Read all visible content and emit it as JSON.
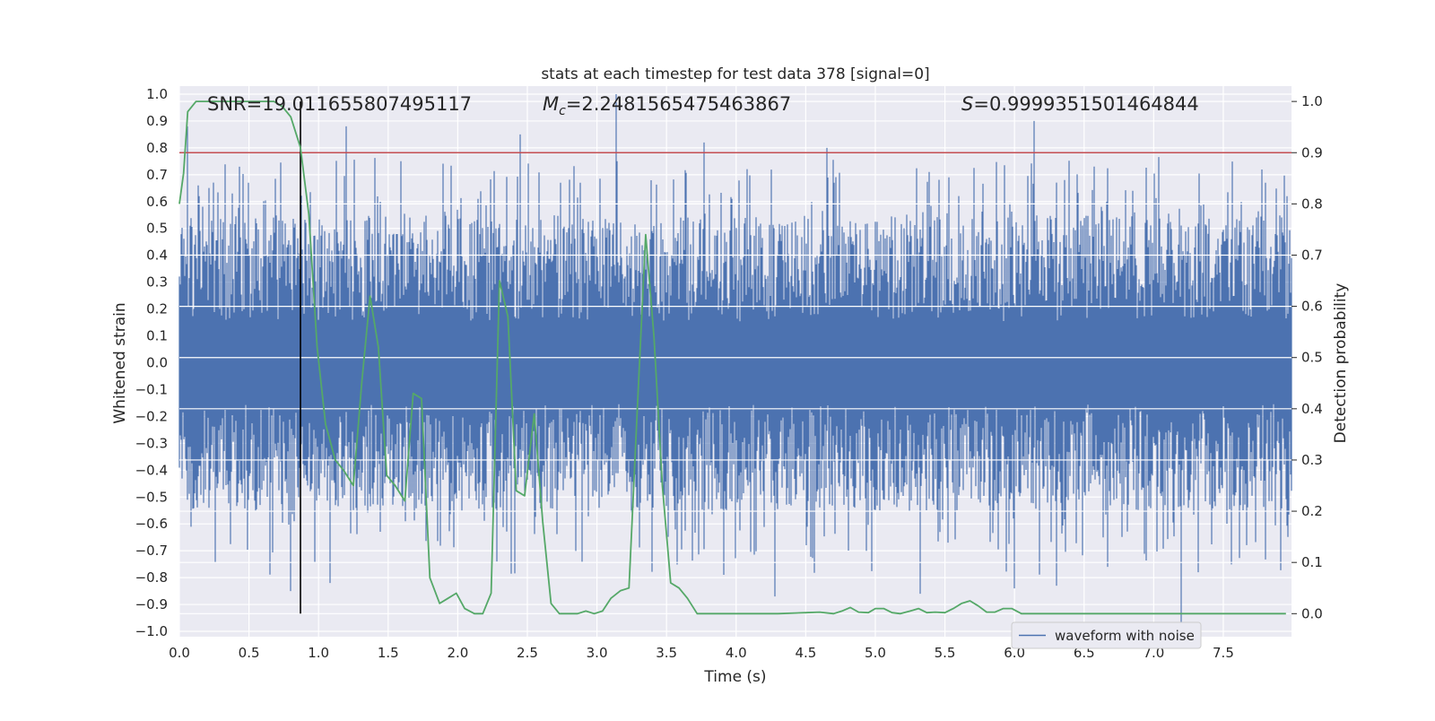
{
  "chart_data": {
    "type": "line",
    "title": "stats at each timestep for test data 378 [signal=0]",
    "xlabel": "Time (s)",
    "ylabel": "Whitened strain",
    "y2label": "Detection probability",
    "xlim": [
      0.0,
      7.99
    ],
    "ylim": [
      -1.02,
      1.03
    ],
    "y2lim": [
      -0.045,
      1.03
    ],
    "xticks": [
      "0.0",
      "0.5",
      "1.0",
      "1.5",
      "2.0",
      "2.5",
      "3.0",
      "3.5",
      "4.0",
      "4.5",
      "5.0",
      "5.5",
      "6.0",
      "6.5",
      "7.0",
      "7.5"
    ],
    "xtick_values": [
      0.0,
      0.5,
      1.0,
      1.5,
      2.0,
      2.5,
      3.0,
      3.5,
      4.0,
      4.5,
      5.0,
      5.5,
      6.0,
      6.5,
      7.0,
      7.5
    ],
    "yticks": [
      "1.0",
      "0.9",
      "0.8",
      "0.7",
      "0.6",
      "0.5",
      "0.4",
      "0.3",
      "0.2",
      "0.1",
      "0.0",
      "−0.1",
      "−0.2",
      "−0.3",
      "−0.4",
      "−0.5",
      "−0.6",
      "−0.7",
      "−0.8",
      "−0.9",
      "−1.0"
    ],
    "ytick_values": [
      1.0,
      0.9,
      0.8,
      0.7,
      0.6,
      0.5,
      0.4,
      0.3,
      0.2,
      0.1,
      0.0,
      -0.1,
      -0.2,
      -0.3,
      -0.4,
      -0.5,
      -0.6,
      -0.7,
      -0.8,
      -0.9,
      -1.0
    ],
    "y2ticks": [
      "1.0",
      "0.9",
      "0.8",
      "0.7",
      "0.6",
      "0.5",
      "0.4",
      "0.3",
      "0.2",
      "0.1",
      "0.0"
    ],
    "y2tick_values": [
      1.0,
      0.9,
      0.8,
      0.7,
      0.6,
      0.5,
      0.4,
      0.3,
      0.2,
      0.1,
      0.0
    ],
    "grid": true,
    "legend": {
      "entries": [
        "waveform with noise"
      ],
      "placement": "lower-right"
    },
    "stats": {
      "snr": "SNR=19.011655807495117",
      "mc_symbol": "M",
      "mc_sub": "c",
      "mc_value": "=2.2481565475463867",
      "s_symbol": "S",
      "s_value": "=0.9999351501464844"
    },
    "threshold": {
      "axis": "y2",
      "value": 0.9
    },
    "marker_time": 0.87,
    "waveform": {
      "name": "waveform with noise",
      "axis": "y",
      "color": "#4c72b0",
      "sample_rate_hz": 256,
      "band_max": 0.55,
      "band_min": -0.55,
      "spikes": [
        [
          0.06,
          0.88
        ],
        [
          0.43,
          0.73
        ],
        [
          1.2,
          0.88
        ],
        [
          2.45,
          0.85
        ],
        [
          3.14,
          1.0
        ],
        [
          3.77,
          0.82
        ],
        [
          4.65,
          0.8
        ],
        [
          6.14,
          0.9
        ],
        [
          4.28,
          -0.87
        ],
        [
          5.32,
          -0.86
        ],
        [
          6.0,
          -0.84
        ],
        [
          6.3,
          -0.83
        ],
        [
          7.2,
          -0.97
        ],
        [
          1.08,
          -0.82
        ],
        [
          0.8,
          -0.85
        ]
      ]
    },
    "series": [
      {
        "name": "Detection probability",
        "axis": "y2",
        "color": "#55a868",
        "x": [
          0.0,
          0.03,
          0.06,
          0.12,
          0.2,
          0.3,
          0.4,
          0.5,
          0.6,
          0.68,
          0.74,
          0.8,
          0.87,
          0.93,
          0.99,
          1.05,
          1.12,
          1.18,
          1.25,
          1.31,
          1.37,
          1.43,
          1.49,
          1.55,
          1.62,
          1.68,
          1.74,
          1.8,
          1.87,
          1.93,
          1.99,
          2.05,
          2.12,
          2.18,
          2.24,
          2.3,
          2.36,
          2.42,
          2.48,
          2.55,
          2.61,
          2.67,
          2.73,
          2.8,
          2.86,
          2.92,
          2.98,
          3.04,
          3.1,
          3.17,
          3.23,
          3.29,
          3.35,
          3.41,
          3.47,
          3.53,
          3.59,
          3.65,
          3.72,
          3.78,
          3.9,
          4.1,
          4.3,
          4.5,
          4.6,
          4.7,
          4.76,
          4.82,
          4.88,
          4.95,
          5.0,
          5.06,
          5.12,
          5.18,
          5.25,
          5.31,
          5.37,
          5.43,
          5.5,
          5.56,
          5.62,
          5.68,
          5.74,
          5.8,
          5.86,
          5.92,
          5.98,
          6.05,
          6.2,
          6.5,
          7.0,
          7.5,
          7.95
        ],
        "values": [
          0.8,
          0.86,
          0.98,
          1.0,
          1.0,
          1.0,
          1.0,
          1.0,
          1.0,
          1.0,
          0.99,
          0.97,
          0.91,
          0.78,
          0.52,
          0.37,
          0.3,
          0.28,
          0.25,
          0.45,
          0.62,
          0.52,
          0.27,
          0.25,
          0.22,
          0.43,
          0.42,
          0.07,
          0.02,
          0.03,
          0.04,
          0.01,
          0.0,
          0.0,
          0.04,
          0.65,
          0.58,
          0.24,
          0.23,
          0.39,
          0.18,
          0.02,
          0.0,
          0.0,
          0.0,
          0.005,
          0.0,
          0.005,
          0.03,
          0.045,
          0.05,
          0.4,
          0.74,
          0.54,
          0.25,
          0.06,
          0.05,
          0.03,
          0.0,
          0.0,
          0.0,
          0.0,
          0.0,
          0.002,
          0.003,
          0.0,
          0.005,
          0.012,
          0.003,
          0.002,
          0.01,
          0.01,
          0.002,
          0.0,
          0.005,
          0.01,
          0.002,
          0.003,
          0.002,
          0.01,
          0.02,
          0.025,
          0.015,
          0.003,
          0.003,
          0.01,
          0.01,
          0.0,
          0.0,
          0.0,
          0.0,
          0.0,
          0.0
        ]
      }
    ]
  }
}
